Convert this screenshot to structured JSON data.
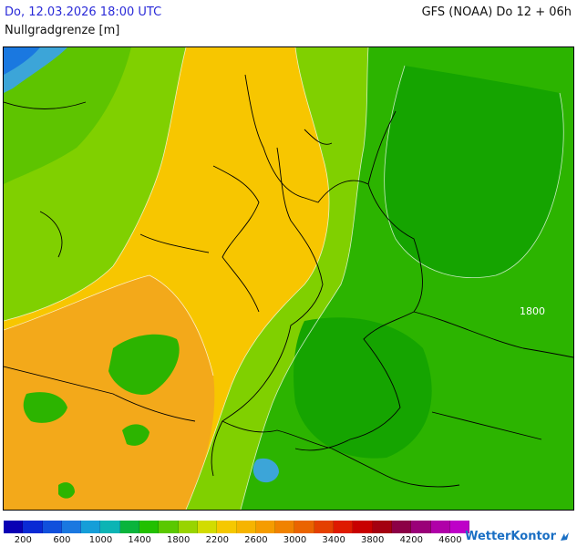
{
  "header": {
    "datetime": "Do, 12.03.2026 18:00 UTC",
    "model": "GFS (NOAA) Do 12 + 06h",
    "parameter": "Nullgradgrenze [m]"
  },
  "map": {
    "contour_label": "1800",
    "fill_colors": {
      "yellow": "#f7c600",
      "orange": "#f3a91a",
      "light_green": "#7fd000",
      "mid_green": "#2cb400",
      "dark_green": "#15a400",
      "light_blue": "#3ca5d8",
      "dark_blue": "#1565c0"
    }
  },
  "legend": {
    "colors": [
      "#0a00b4",
      "#0a2ad4",
      "#1150dc",
      "#1a78e0",
      "#159ed8",
      "#0cb4b4",
      "#0ab43c",
      "#22c000",
      "#5ac800",
      "#98d400",
      "#d2dc00",
      "#f5c800",
      "#f6b400",
      "#f59c00",
      "#f08200",
      "#ea6400",
      "#e44000",
      "#de1a00",
      "#c80000",
      "#a40010",
      "#8c0046",
      "#9a0078",
      "#b000a8",
      "#be00c8"
    ],
    "tick_labels": [
      "200",
      "600",
      "1000",
      "1400",
      "1800",
      "2200",
      "2600",
      "3000",
      "3400",
      "3800",
      "4200",
      "4600"
    ]
  },
  "branding": {
    "logo_text": "WetterKontor",
    "logo_icon": "wetterkontor-logo-icon"
  }
}
